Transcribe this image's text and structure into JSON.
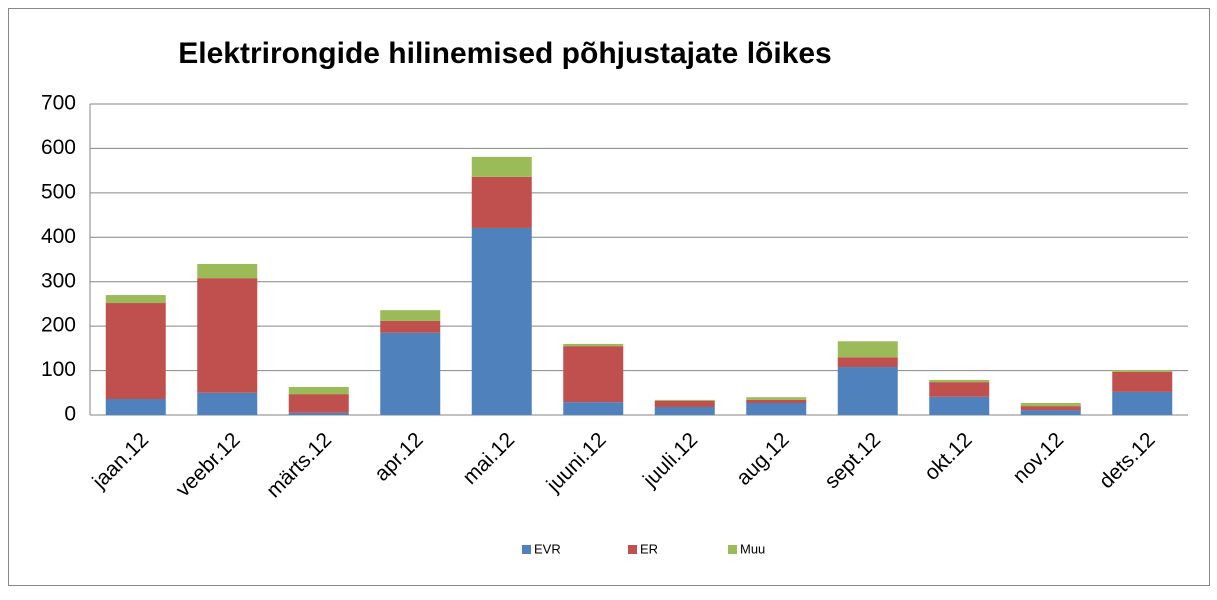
{
  "chart_data": {
    "type": "stacked_bar",
    "title": "Elektrirongide hilinemised põhjustajate lõikes",
    "categories": [
      "jaan.12",
      "veebr.12",
      "märts.12",
      "apr.12",
      "mai.12",
      "juuni.12",
      "juuli.12",
      "aug.12",
      "sept.12",
      "okt.12",
      "nov.12",
      "dets.12"
    ],
    "series": [
      {
        "name": "EVR",
        "color": "#4f81bd",
        "values": [
          36,
          50,
          5,
          185,
          421,
          29,
          18,
          27,
          108,
          41,
          11,
          52
        ]
      },
      {
        "name": "ER",
        "color": "#c0504d",
        "values": [
          216,
          258,
          42,
          27,
          115,
          126,
          14,
          7,
          22,
          33,
          9,
          45
        ]
      },
      {
        "name": "Muu",
        "color": "#9bbb59",
        "values": [
          18,
          32,
          16,
          24,
          45,
          5,
          2,
          6,
          36,
          5,
          7,
          4
        ]
      }
    ],
    "ylim": [
      0,
      700
    ],
    "yticks": [
      0,
      100,
      200,
      300,
      400,
      500,
      600,
      700
    ],
    "grid": true,
    "legend": "bottom"
  }
}
